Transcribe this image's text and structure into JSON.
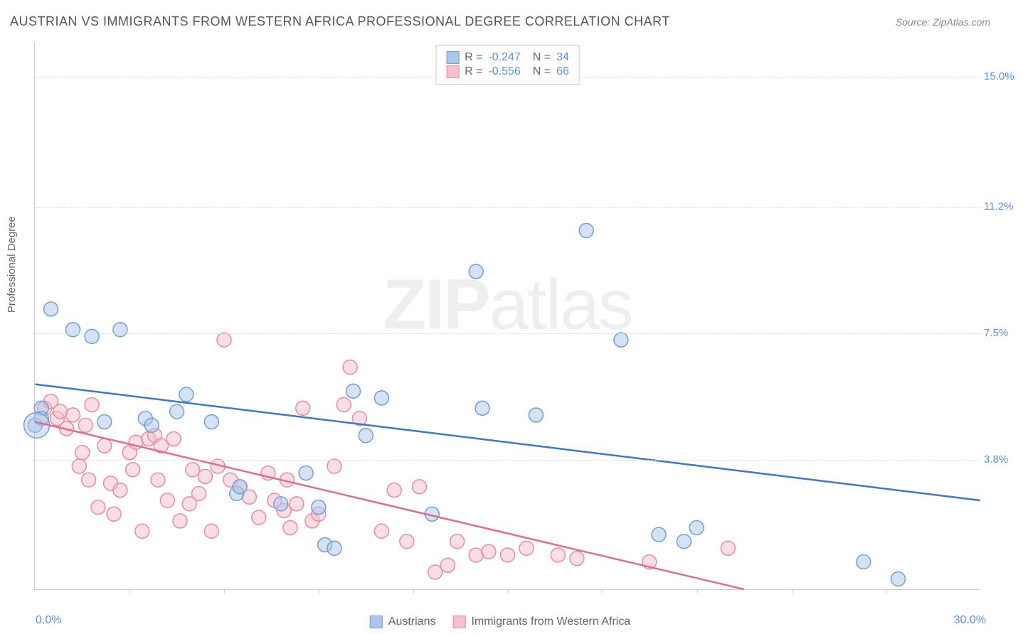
{
  "header": {
    "title": "AUSTRIAN VS IMMIGRANTS FROM WESTERN AFRICA PROFESSIONAL DEGREE CORRELATION CHART",
    "source": "Source: ZipAtlas.com"
  },
  "ylabel": "Professional Degree",
  "watermark": {
    "bold": "ZIP",
    "light": "atlas"
  },
  "chart": {
    "type": "scatter",
    "xlim": [
      0,
      30
    ],
    "ylim": [
      0,
      16
    ],
    "y_gridlines": [
      {
        "value": 3.8,
        "label": "3.8%"
      },
      {
        "value": 7.5,
        "label": "7.5%"
      },
      {
        "value": 11.2,
        "label": "11.2%"
      },
      {
        "value": 15.0,
        "label": "15.0%"
      }
    ],
    "x_ticks": [
      3,
      6,
      9,
      12,
      15,
      18,
      21,
      24,
      27
    ],
    "x_axis_labels": {
      "left": "0.0%",
      "right": "30.0%"
    },
    "background_color": "#ffffff",
    "grid_color": "#dddddd",
    "axis_color": "#cccccc",
    "value_color": "#5b8fd6",
    "marker_radius": 10,
    "marker_opacity": 0.5,
    "line_width": 2.5
  },
  "series": [
    {
      "name": "Austrians",
      "label": "Austrians",
      "fill_color": "#aac6e8",
      "stroke_color": "#6f9fd8",
      "line_color": "#3d78c7",
      "R": "-0.247",
      "N": "34",
      "trend": {
        "x1": 0,
        "y1": 6.0,
        "x2": 30,
        "y2": 2.6
      },
      "points": [
        [
          0.0,
          4.8
        ],
        [
          0.2,
          5.3
        ],
        [
          0.2,
          5.0
        ],
        [
          0.5,
          8.2
        ],
        [
          1.2,
          7.6
        ],
        [
          1.8,
          7.4
        ],
        [
          2.7,
          7.6
        ],
        [
          2.2,
          4.9
        ],
        [
          3.5,
          5.0
        ],
        [
          4.5,
          5.2
        ],
        [
          3.7,
          4.8
        ],
        [
          4.8,
          5.7
        ],
        [
          5.6,
          4.9
        ],
        [
          6.4,
          2.8
        ],
        [
          6.5,
          3.0
        ],
        [
          7.8,
          2.5
        ],
        [
          8.6,
          3.4
        ],
        [
          9.0,
          2.4
        ],
        [
          9.2,
          1.3
        ],
        [
          9.5,
          1.2
        ],
        [
          10.1,
          5.8
        ],
        [
          10.5,
          4.5
        ],
        [
          11.0,
          5.6
        ],
        [
          12.6,
          2.2
        ],
        [
          14.0,
          9.3
        ],
        [
          14.2,
          5.3
        ],
        [
          15.9,
          5.1
        ],
        [
          17.5,
          10.5
        ],
        [
          18.6,
          7.3
        ],
        [
          19.8,
          1.6
        ],
        [
          20.6,
          1.4
        ],
        [
          21.0,
          1.8
        ],
        [
          26.3,
          0.8
        ],
        [
          27.4,
          0.3
        ]
      ]
    },
    {
      "name": "Immigrants from Western Africa",
      "label": "Immigrants from Western Africa",
      "fill_color": "#f4c0cb",
      "stroke_color": "#e88ba0",
      "line_color": "#e26b88",
      "R": "-0.556",
      "N": "66",
      "trend": {
        "x1": 0,
        "y1": 4.9,
        "x2": 22.5,
        "y2": 0.0
      },
      "points": [
        [
          0.3,
          5.3
        ],
        [
          0.5,
          5.5
        ],
        [
          0.7,
          5.0
        ],
        [
          0.8,
          5.2
        ],
        [
          1.0,
          4.7
        ],
        [
          1.2,
          5.1
        ],
        [
          1.4,
          3.6
        ],
        [
          1.5,
          4.0
        ],
        [
          1.6,
          4.8
        ],
        [
          1.7,
          3.2
        ],
        [
          1.8,
          5.4
        ],
        [
          2.0,
          2.4
        ],
        [
          2.2,
          4.2
        ],
        [
          2.4,
          3.1
        ],
        [
          2.5,
          2.2
        ],
        [
          2.7,
          2.9
        ],
        [
          3.0,
          4.0
        ],
        [
          3.1,
          3.5
        ],
        [
          3.2,
          4.3
        ],
        [
          3.4,
          1.7
        ],
        [
          3.6,
          4.4
        ],
        [
          3.8,
          4.5
        ],
        [
          3.9,
          3.2
        ],
        [
          4.0,
          4.2
        ],
        [
          4.2,
          2.6
        ],
        [
          4.4,
          4.4
        ],
        [
          4.6,
          2.0
        ],
        [
          4.9,
          2.5
        ],
        [
          5.0,
          3.5
        ],
        [
          5.2,
          2.8
        ],
        [
          5.4,
          3.3
        ],
        [
          5.6,
          1.7
        ],
        [
          5.8,
          3.6
        ],
        [
          6.0,
          7.3
        ],
        [
          6.2,
          3.2
        ],
        [
          6.5,
          3.0
        ],
        [
          6.8,
          2.7
        ],
        [
          7.1,
          2.1
        ],
        [
          7.4,
          3.4
        ],
        [
          7.6,
          2.6
        ],
        [
          7.9,
          2.3
        ],
        [
          8.0,
          3.2
        ],
        [
          8.1,
          1.8
        ],
        [
          8.3,
          2.5
        ],
        [
          8.5,
          5.3
        ],
        [
          8.8,
          2.0
        ],
        [
          9.0,
          2.2
        ],
        [
          9.5,
          3.6
        ],
        [
          9.8,
          5.4
        ],
        [
          10.0,
          6.5
        ],
        [
          10.3,
          5.0
        ],
        [
          11.0,
          1.7
        ],
        [
          11.4,
          2.9
        ],
        [
          11.8,
          1.4
        ],
        [
          12.2,
          3.0
        ],
        [
          12.7,
          0.5
        ],
        [
          13.1,
          0.7
        ],
        [
          13.4,
          1.4
        ],
        [
          14.0,
          1.0
        ],
        [
          14.4,
          1.1
        ],
        [
          15.0,
          1.0
        ],
        [
          15.6,
          1.2
        ],
        [
          16.6,
          1.0
        ],
        [
          17.2,
          0.9
        ],
        [
          19.5,
          0.8
        ],
        [
          22.0,
          1.2
        ]
      ]
    }
  ]
}
